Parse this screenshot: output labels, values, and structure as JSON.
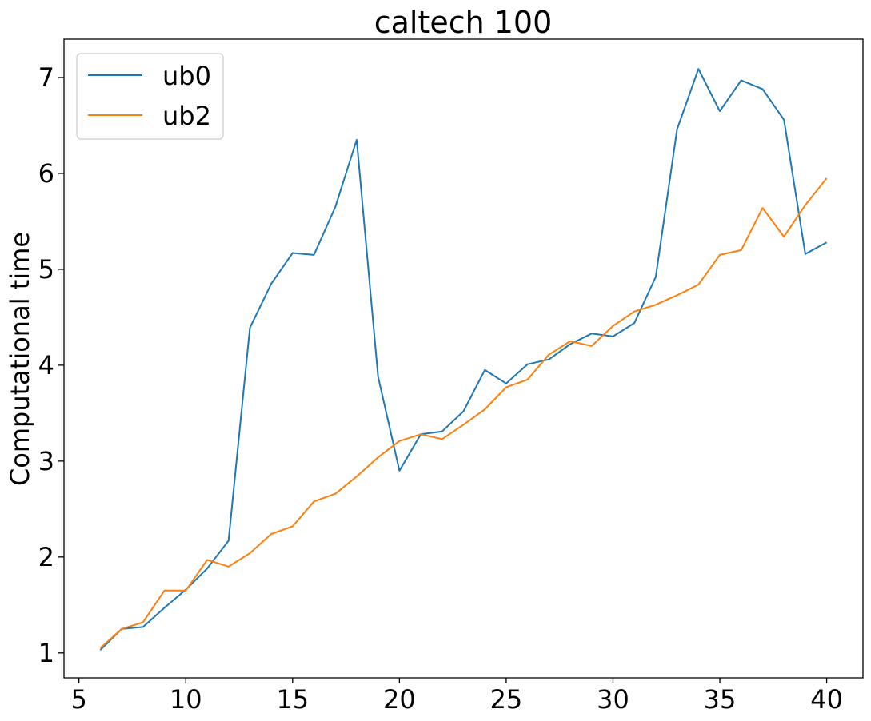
{
  "chart_data": {
    "type": "line",
    "title": "caltech 100",
    "xlabel": "",
    "ylabel": "Computational time",
    "xlim": [
      4.3,
      41.7
    ],
    "ylim": [
      0.74,
      7.4
    ],
    "xticks": [
      5,
      10,
      15,
      20,
      25,
      30,
      35,
      40
    ],
    "yticks": [
      1,
      2,
      3,
      4,
      5,
      6,
      7
    ],
    "grid": false,
    "legend_position": "top-left",
    "x": [
      6,
      7,
      8,
      9,
      10,
      11,
      12,
      13,
      14,
      15,
      16,
      17,
      18,
      19,
      20,
      21,
      22,
      23,
      24,
      25,
      26,
      27,
      28,
      29,
      30,
      31,
      32,
      33,
      34,
      35,
      36,
      37,
      38,
      39,
      40
    ],
    "series": [
      {
        "name": "ub0",
        "color": "#1f77b4",
        "values": [
          1.03,
          1.25,
          1.27,
          1.47,
          1.66,
          1.88,
          2.17,
          4.39,
          4.85,
          5.17,
          5.15,
          5.65,
          6.35,
          3.88,
          2.9,
          3.28,
          3.31,
          3.52,
          3.95,
          3.81,
          4.01,
          4.06,
          4.22,
          4.33,
          4.3,
          4.44,
          4.92,
          6.46,
          7.09,
          6.65,
          6.97,
          6.88,
          6.56,
          5.16,
          5.28
        ]
      },
      {
        "name": "ub2",
        "color": "#ff7f0e",
        "values": [
          1.05,
          1.25,
          1.32,
          1.65,
          1.65,
          1.97,
          1.9,
          2.04,
          2.24,
          2.32,
          2.58,
          2.66,
          2.84,
          3.04,
          3.21,
          3.28,
          3.23,
          3.38,
          3.54,
          3.77,
          3.85,
          4.11,
          4.25,
          4.2,
          4.41,
          4.56,
          4.63,
          4.73,
          4.84,
          5.15,
          5.2,
          5.64,
          5.34,
          5.67,
          5.95
        ]
      }
    ]
  }
}
